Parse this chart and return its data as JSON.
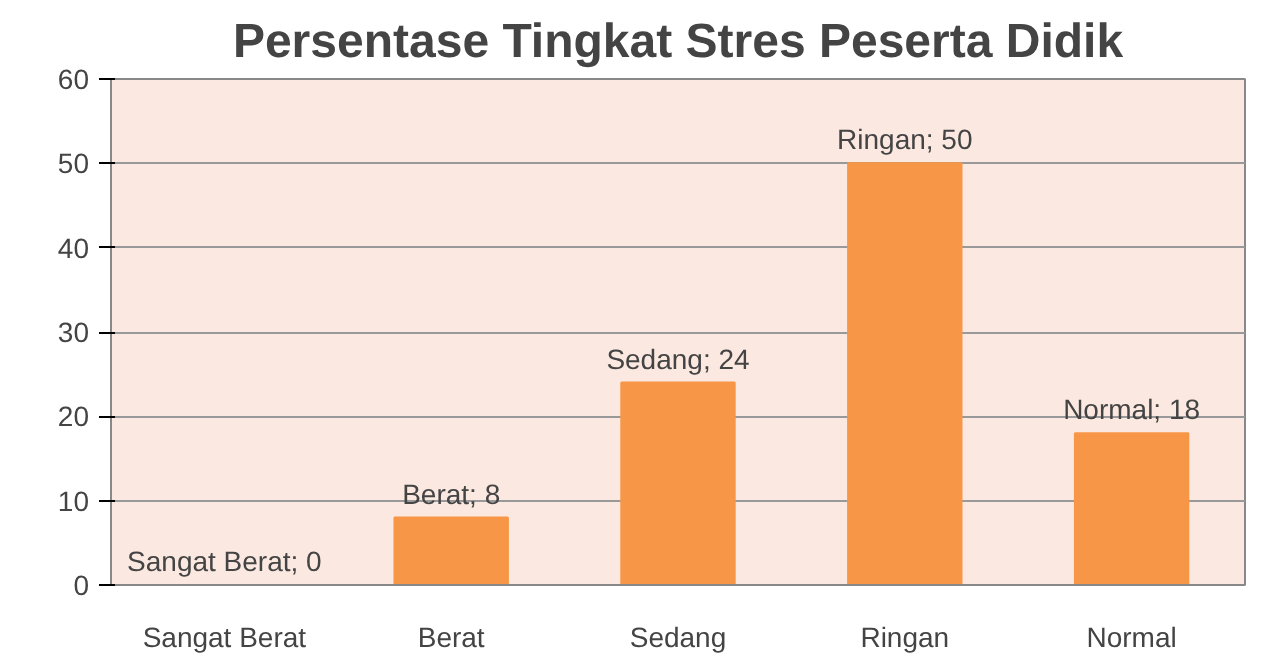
{
  "chart_data": {
    "type": "bar",
    "title": "Persentase Tingkat Stres Peserta Didik",
    "categories": [
      "Sangat Berat",
      "Berat",
      "Sedang",
      "Ringan",
      "Normal"
    ],
    "values": [
      0,
      8,
      24,
      50,
      18
    ],
    "value_labels": [
      "Sangat Berat; 0",
      "Berat; 8",
      "Sedang; 24",
      "Ringan; 50",
      "Normal; 18"
    ],
    "color": "#f79646",
    "ylim": [
      0,
      60
    ],
    "yticks": [
      0,
      10,
      20,
      30,
      40,
      50,
      60
    ],
    "grid": "y"
  }
}
